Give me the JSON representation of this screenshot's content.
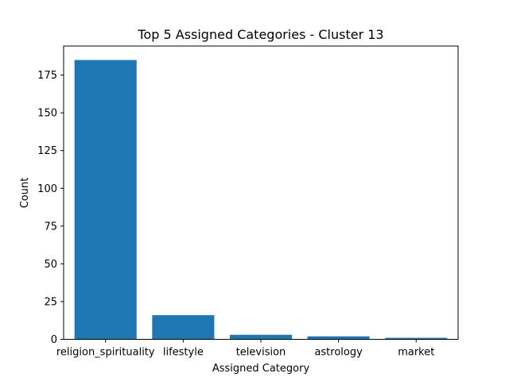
{
  "chart_data": {
    "type": "bar",
    "title": "Top 5 Assigned Categories - Cluster 13",
    "xlabel": "Assigned Category",
    "ylabel": "Count",
    "categories": [
      "religion_spirituality",
      "lifestyle",
      "television",
      "astrology",
      "market"
    ],
    "values": [
      185,
      16,
      3,
      2,
      1
    ],
    "ylim": [
      0,
      194.25
    ],
    "yticks": [
      0,
      25,
      50,
      75,
      100,
      125,
      150,
      175
    ],
    "bar_color": "#1f77b4",
    "grid": false,
    "legend": "none"
  }
}
